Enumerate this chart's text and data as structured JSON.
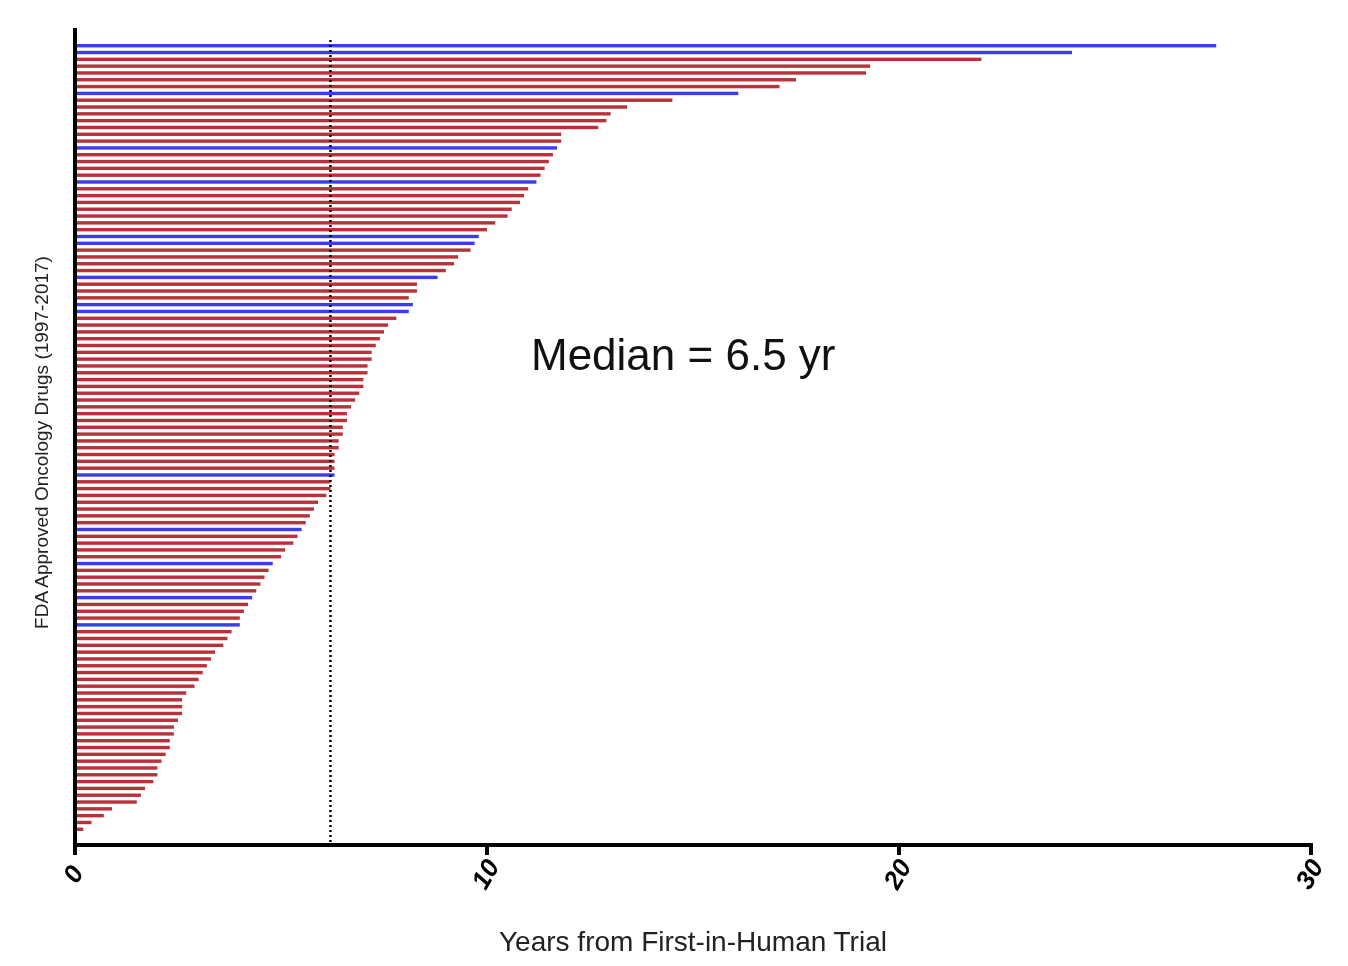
{
  "chart_data": {
    "type": "bar",
    "orientation": "horizontal",
    "xlabel": "Years from First-in-Human Trial",
    "ylabel": "FDA Approved Oncology Drugs (1997-2017)",
    "categories": [
      null,
      null,
      null,
      null,
      null,
      null,
      null,
      null,
      null,
      null,
      null,
      null,
      null,
      null,
      null,
      null,
      null,
      null,
      null,
      null,
      null,
      null,
      null,
      null,
      null,
      null,
      null,
      null,
      null,
      null,
      null,
      null,
      null,
      null,
      null,
      null,
      null,
      null,
      null,
      null,
      null,
      null,
      null,
      null,
      null,
      null,
      null,
      null,
      null,
      null,
      null,
      null,
      null,
      null,
      null,
      null,
      null,
      null,
      null,
      null,
      null,
      null,
      null,
      null,
      null,
      null,
      null,
      null,
      null,
      null,
      null,
      null,
      null,
      null,
      null,
      null,
      null,
      null,
      null,
      null,
      null,
      null,
      null,
      null,
      null,
      null,
      null,
      null,
      null,
      null,
      null,
      null,
      null,
      null,
      null,
      null,
      null,
      null,
      null,
      null,
      null,
      null,
      null,
      null,
      null,
      null,
      null,
      null,
      null,
      null,
      null,
      null,
      null,
      null,
      null,
      null
    ],
    "values": [
      27.7,
      24.2,
      22.0,
      19.3,
      19.2,
      17.5,
      17.1,
      16.1,
      14.5,
      13.4,
      13.0,
      12.9,
      12.7,
      11.8,
      11.8,
      11.7,
      11.6,
      11.5,
      11.4,
      11.3,
      11.2,
      11.0,
      10.9,
      10.8,
      10.6,
      10.5,
      10.2,
      10.0,
      9.8,
      9.7,
      9.6,
      9.3,
      9.2,
      9.0,
      8.8,
      8.3,
      8.3,
      8.1,
      8.2,
      8.1,
      7.8,
      7.6,
      7.5,
      7.4,
      7.3,
      7.2,
      7.2,
      7.1,
      7.1,
      7.0,
      7.0,
      6.9,
      6.8,
      6.7,
      6.6,
      6.6,
      6.5,
      6.5,
      6.4,
      6.4,
      6.3,
      6.3,
      6.3,
      6.3,
      6.2,
      6.2,
      6.1,
      5.9,
      5.8,
      5.7,
      5.6,
      5.5,
      5.4,
      5.3,
      5.1,
      5.0,
      4.8,
      4.7,
      4.6,
      4.5,
      4.4,
      4.3,
      4.2,
      4.1,
      4.0,
      4.0,
      3.8,
      3.7,
      3.6,
      3.4,
      3.3,
      3.2,
      3.1,
      3.0,
      2.9,
      2.7,
      2.6,
      2.6,
      2.6,
      2.5,
      2.4,
      2.4,
      2.3,
      2.3,
      2.2,
      2.1,
      2.0,
      2.0,
      1.9,
      1.7,
      1.6,
      1.5,
      0.9,
      0.7,
      0.4,
      0.2
    ],
    "colors": [
      "#3b3bf0",
      "#3b3bf0",
      "#b8323c",
      "#b8323c",
      "#b8323c",
      "#b8323c",
      "#b8323c",
      "#3b3bf0",
      "#b8323c",
      "#b8323c",
      "#b8323c",
      "#b8323c",
      "#b8323c",
      "#b8323c",
      "#b8323c",
      "#3b3bf0",
      "#b8323c",
      "#b8323c",
      "#b8323c",
      "#b8323c",
      "#3b3bf0",
      "#b8323c",
      "#b8323c",
      "#b8323c",
      "#b8323c",
      "#b8323c",
      "#b8323c",
      "#b8323c",
      "#3b3bf0",
      "#3b3bf0",
      "#b8323c",
      "#b8323c",
      "#b8323c",
      "#b8323c",
      "#3b3bf0",
      "#b8323c",
      "#b8323c",
      "#b8323c",
      "#3b3bf0",
      "#3b3bf0",
      "#b8323c",
      "#b8323c",
      "#b8323c",
      "#b8323c",
      "#b8323c",
      "#b8323c",
      "#b8323c",
      "#b8323c",
      "#b8323c",
      "#b8323c",
      "#b8323c",
      "#b8323c",
      "#b8323c",
      "#b8323c",
      "#b8323c",
      "#b8323c",
      "#b8323c",
      "#b8323c",
      "#b8323c",
      "#b8323c",
      "#b8323c",
      "#b8323c",
      "#b8323c",
      "#3b3bf0",
      "#b8323c",
      "#b8323c",
      "#b8323c",
      "#b8323c",
      "#b8323c",
      "#b8323c",
      "#b8323c",
      "#3b3bf0",
      "#b8323c",
      "#b8323c",
      "#b8323c",
      "#b8323c",
      "#3b3bf0",
      "#b8323c",
      "#b8323c",
      "#b8323c",
      "#b8323c",
      "#3b3bf0",
      "#b8323c",
      "#b8323c",
      "#b8323c",
      "#3b3bf0",
      "#b8323c",
      "#b8323c",
      "#b8323c",
      "#b8323c",
      "#b8323c",
      "#b8323c",
      "#b8323c",
      "#b8323c",
      "#b8323c",
      "#b8323c",
      "#b8323c",
      "#b8323c",
      "#b8323c",
      "#b8323c",
      "#b8323c",
      "#b8323c",
      "#b8323c",
      "#b8323c",
      "#b8323c",
      "#b8323c",
      "#b8323c",
      "#b8323c",
      "#b8323c",
      "#b8323c",
      "#b8323c",
      "#b8323c",
      "#b8323c",
      "#b8323c",
      "#b8323c",
      "#b8323c"
    ],
    "xlim": [
      0,
      30
    ],
    "xticks": [
      0,
      10,
      20,
      30
    ],
    "ref_lines": [
      {
        "axis": "x",
        "value": 6.2,
        "color": "#000000",
        "line_style": "dotted"
      }
    ],
    "annotations": [
      "Median = 6.5 yr"
    ],
    "grid": false
  }
}
